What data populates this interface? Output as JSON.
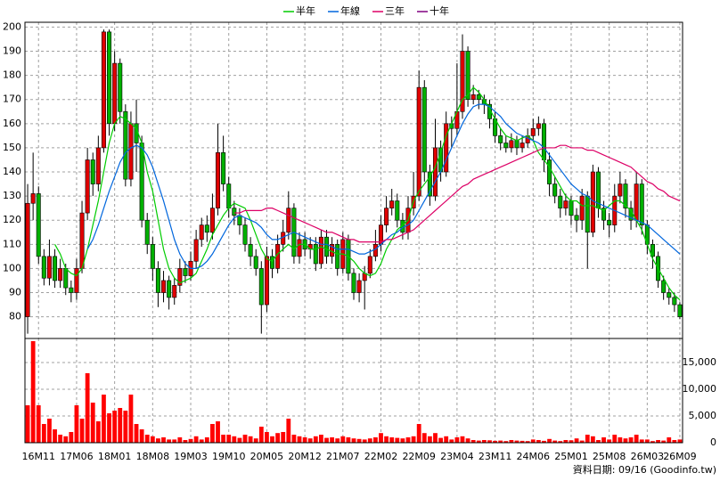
{
  "chart_data": {
    "type": "candlestick",
    "legend": "top",
    "grid": true,
    "source": "資料日期: 09/16 (Goodinfo.tw)",
    "up_color": "#e00000",
    "down_color": "#00b000",
    "categories": [
      null,
      null,
      "16M11",
      null,
      null,
      null,
      null,
      null,
      null,
      "17M06",
      null,
      null,
      null,
      null,
      null,
      null,
      "18M01",
      null,
      null,
      null,
      null,
      null,
      null,
      "18M08",
      null,
      null,
      null,
      null,
      null,
      null,
      "19M03",
      null,
      null,
      null,
      null,
      null,
      null,
      "19M10",
      null,
      null,
      null,
      null,
      null,
      null,
      "20M05",
      null,
      null,
      null,
      null,
      null,
      null,
      "20M12",
      null,
      null,
      null,
      null,
      null,
      null,
      "21M07",
      null,
      null,
      null,
      null,
      null,
      null,
      "22M02",
      null,
      null,
      null,
      null,
      null,
      null,
      "22M09",
      null,
      null,
      null,
      null,
      null,
      null,
      "23M04",
      null,
      null,
      null,
      null,
      null,
      null,
      "23M11",
      null,
      null,
      null,
      null,
      null,
      null,
      "24M06",
      null,
      null,
      null,
      null,
      null,
      null,
      "25M01",
      null,
      null,
      null,
      null,
      null,
      null,
      "25M08",
      null,
      null,
      null,
      null,
      null,
      null,
      "26M03",
      null,
      null,
      null,
      null,
      null,
      "26M09"
    ],
    "open": [
      80,
      127,
      131,
      105,
      96,
      105,
      95,
      100,
      92,
      90,
      100,
      123,
      145,
      135,
      150,
      198,
      160,
      185,
      165,
      137,
      160,
      152,
      120,
      110,
      100,
      90,
      95,
      88,
      93,
      100,
      97,
      103,
      112,
      118,
      115,
      125,
      148,
      135,
      125,
      122,
      118,
      110,
      105,
      100,
      85,
      105,
      100,
      110,
      115,
      125,
      105,
      112,
      108,
      110,
      102,
      113,
      105,
      110,
      100,
      112,
      98,
      90,
      95,
      98,
      105,
      110,
      118,
      125,
      128,
      120,
      115,
      125,
      130,
      175,
      140,
      130,
      150,
      140,
      160,
      158,
      165,
      190,
      170,
      172,
      170,
      168,
      162,
      155,
      152,
      150,
      153,
      150,
      152,
      155,
      158,
      160,
      145,
      135,
      130,
      125,
      128,
      122,
      120,
      130,
      115,
      140,
      125,
      120,
      118,
      130,
      135,
      125,
      120,
      135,
      118,
      110,
      105,
      95,
      90,
      88,
      85
    ],
    "high": [
      135,
      148,
      134,
      108,
      112,
      108,
      104,
      102,
      95,
      104,
      128,
      150,
      148,
      155,
      199,
      199,
      190,
      187,
      168,
      165,
      170,
      155,
      123,
      113,
      103,
      99,
      97,
      96,
      104,
      103,
      107,
      116,
      121,
      122,
      131,
      160,
      155,
      138,
      128,
      125,
      121,
      113,
      108,
      103,
      109,
      108,
      114,
      120,
      132,
      127,
      115,
      115,
      113,
      113,
      116,
      116,
      113,
      112,
      115,
      114,
      100,
      98,
      101,
      108,
      116,
      122,
      130,
      133,
      131,
      123,
      130,
      140,
      182,
      178,
      143,
      162,
      153,
      165,
      163,
      185,
      197,
      192,
      176,
      174,
      172,
      170,
      165,
      158,
      155,
      156,
      155,
      155,
      158,
      162,
      163,
      162,
      148,
      138,
      133,
      131,
      130,
      125,
      133,
      132,
      143,
      142,
      128,
      123,
      135,
      140,
      137,
      128,
      140,
      137,
      120,
      112,
      107,
      97,
      92,
      90,
      86
    ],
    "low": [
      73,
      120,
      102,
      93,
      93,
      92,
      92,
      89,
      86,
      87,
      98,
      120,
      130,
      132,
      148,
      155,
      157,
      160,
      134,
      134,
      140,
      117,
      106,
      95,
      84,
      86,
      83,
      85,
      90,
      94,
      95,
      100,
      109,
      111,
      112,
      122,
      132,
      121,
      118,
      114,
      107,
      101,
      97,
      73,
      82,
      96,
      98,
      107,
      112,
      102,
      102,
      105,
      104,
      99,
      100,
      102,
      102,
      97,
      98,
      95,
      87,
      86,
      83,
      96,
      103,
      107,
      115,
      122,
      117,
      112,
      112,
      122,
      128,
      136,
      126,
      128,
      136,
      138,
      150,
      155,
      162,
      167,
      168,
      166,
      164,
      158,
      152,
      149,
      148,
      148,
      147,
      148,
      150,
      153,
      155,
      140,
      130,
      127,
      121,
      122,
      118,
      115,
      116,
      100,
      113,
      121,
      116,
      113,
      115,
      127,
      121,
      116,
      117,
      114,
      106,
      100,
      92,
      87,
      85,
      82,
      79
    ],
    "close": [
      127,
      131,
      105,
      96,
      105,
      95,
      100,
      92,
      90,
      100,
      123,
      145,
      135,
      150,
      198,
      160,
      185,
      165,
      137,
      160,
      152,
      120,
      110,
      100,
      90,
      95,
      88,
      93,
      100,
      97,
      103,
      112,
      118,
      115,
      125,
      148,
      135,
      125,
      122,
      118,
      110,
      105,
      100,
      85,
      105,
      100,
      110,
      115,
      125,
      105,
      112,
      108,
      110,
      102,
      113,
      105,
      110,
      100,
      112,
      98,
      90,
      95,
      98,
      105,
      110,
      118,
      125,
      128,
      120,
      115,
      125,
      130,
      175,
      140,
      130,
      150,
      140,
      160,
      158,
      165,
      190,
      170,
      172,
      170,
      168,
      162,
      155,
      152,
      150,
      153,
      150,
      152,
      155,
      158,
      160,
      145,
      135,
      130,
      125,
      128,
      122,
      120,
      130,
      115,
      140,
      125,
      120,
      118,
      130,
      135,
      125,
      120,
      135,
      118,
      110,
      105,
      95,
      90,
      88,
      85,
      80
    ],
    "series": [
      {
        "name": "半年",
        "color": "#00cc00",
        "values": [
          null,
          null,
          null,
          null,
          null,
          110,
          106,
          100,
          98,
          97,
          100,
          108,
          118,
          128,
          140,
          152,
          160,
          163,
          162,
          160,
          158,
          152,
          140,
          132,
          120,
          108,
          100,
          96,
          94,
          95,
          96,
          98,
          103,
          108,
          114,
          118,
          122,
          125,
          127,
          126,
          125,
          120,
          114,
          108,
          104,
          103,
          106,
          108,
          110,
          108,
          110,
          110,
          108,
          108,
          109,
          108,
          107,
          106,
          106,
          105,
          103,
          100,
          98,
          97,
          98,
          102,
          108,
          112,
          116,
          118,
          120,
          128,
          132,
          135,
          138,
          142,
          148,
          155,
          160,
          165,
          170,
          172,
          175,
          173,
          170,
          166,
          162,
          158,
          155,
          154,
          153,
          154,
          155,
          153,
          148,
          145,
          142,
          138,
          134,
          130,
          128,
          128,
          126,
          126,
          126,
          125,
          124,
          126,
          128,
          128,
          126,
          124,
          120,
          116,
          110,
          104,
          100,
          96,
          92,
          89,
          87
        ]
      },
      {
        "name": "年線",
        "color": "#0066dd",
        "values": [
          null,
          null,
          null,
          null,
          null,
          null,
          null,
          null,
          null,
          null,
          null,
          108,
          112,
          118,
          125,
          132,
          138,
          144,
          148,
          150,
          151,
          150,
          147,
          142,
          135,
          128,
          120,
          112,
          106,
          102,
          100,
          100,
          101,
          103,
          106,
          110,
          114,
          118,
          121,
          122,
          121,
          120,
          119,
          117,
          114,
          112,
          112,
          113,
          114,
          115,
          114,
          113,
          112,
          111,
          110,
          110,
          109,
          108,
          108,
          108,
          107,
          106,
          106,
          107,
          108,
          110,
          112,
          114,
          115,
          117,
          118,
          120,
          124,
          128,
          132,
          136,
          140,
          145,
          150,
          155,
          160,
          164,
          167,
          168,
          168,
          167,
          165,
          163,
          160,
          158,
          156,
          155,
          154,
          153,
          152,
          150,
          147,
          144,
          141,
          138,
          135,
          133,
          131,
          130,
          128,
          127,
          126,
          125,
          124,
          123,
          122,
          121,
          120,
          119,
          118,
          116,
          114,
          112,
          110,
          108,
          106
        ]
      },
      {
        "name": "三年",
        "color": "#dd0066",
        "values": [
          null,
          null,
          null,
          null,
          null,
          null,
          null,
          null,
          null,
          null,
          null,
          null,
          null,
          null,
          null,
          null,
          null,
          null,
          null,
          null,
          null,
          null,
          null,
          null,
          null,
          null,
          null,
          null,
          null,
          null,
          null,
          null,
          null,
          null,
          null,
          null,
          null,
          null,
          123,
          123,
          124,
          124,
          124,
          124,
          125,
          125,
          124,
          123,
          122,
          121,
          120,
          119,
          118,
          117,
          116,
          115,
          115,
          114,
          113,
          112,
          112,
          111,
          111,
          111,
          111,
          111,
          112,
          112,
          113,
          114,
          115,
          116,
          118,
          120,
          122,
          124,
          126,
          128,
          130,
          132,
          134,
          135,
          137,
          138,
          139,
          140,
          141,
          142,
          143,
          144,
          145,
          146,
          147,
          148,
          149,
          150,
          150,
          150,
          151,
          151,
          150,
          150,
          150,
          149,
          149,
          148,
          147,
          146,
          145,
          144,
          143,
          142,
          140,
          138,
          136,
          135,
          133,
          132,
          130,
          129,
          128
        ]
      },
      {
        "name": "十年",
        "color": "#800080",
        "values": [
          null,
          null,
          null,
          null,
          null,
          null,
          null,
          null,
          null,
          null,
          null,
          null,
          null,
          null,
          null,
          null,
          null,
          null,
          null,
          null,
          null,
          null,
          null,
          null,
          null,
          null,
          null,
          null,
          null,
          null,
          null,
          null,
          null,
          null,
          null,
          null,
          null,
          null,
          null,
          null,
          null,
          null,
          null,
          null,
          null,
          null,
          null,
          null,
          null,
          null,
          null,
          null,
          null,
          null,
          null,
          null,
          null,
          null,
          null,
          null,
          null,
          null,
          null,
          null,
          null,
          null,
          null,
          null,
          null,
          null,
          null,
          null,
          null,
          null,
          null,
          null,
          null,
          null,
          null,
          null,
          null,
          null,
          null,
          null,
          null,
          null,
          null,
          null,
          null,
          null,
          null,
          null,
          null,
          null,
          null,
          null,
          null,
          null,
          null,
          null,
          null,
          null,
          null,
          null,
          null,
          null,
          null,
          null,
          null,
          null,
          null,
          null,
          null,
          null,
          null,
          null,
          null,
          null,
          null,
          null,
          null
        ]
      }
    ],
    "ylim": [
      71,
      202
    ],
    "yticks": [
      80,
      90,
      100,
      110,
      120,
      130,
      140,
      150,
      160,
      170,
      180,
      190,
      200
    ],
    "volume": {
      "color": "#ff0000",
      "ylim": [
        0,
        19500
      ],
      "yticks": [
        0,
        {
          "value": 5000,
          "label": "5,000"
        },
        {
          "value": 10000,
          "label": "10,000"
        },
        {
          "value": 15000,
          "label": "15,000"
        }
      ],
      "values": [
        7000,
        19000,
        7000,
        3500,
        4500,
        2500,
        1500,
        1200,
        2000,
        7000,
        4500,
        13000,
        7500,
        4000,
        9000,
        5500,
        6000,
        6500,
        6000,
        9000,
        3500,
        2500,
        1500,
        1200,
        800,
        1000,
        600,
        600,
        1000,
        500,
        700,
        1200,
        600,
        1000,
        3500,
        4000,
        1500,
        1500,
        1200,
        900,
        1500,
        1200,
        800,
        3000,
        2000,
        1200,
        1800,
        2000,
        4500,
        1500,
        1200,
        1000,
        800,
        1200,
        1500,
        900,
        1000,
        800,
        1200,
        1000,
        800,
        700,
        600,
        800,
        1000,
        1800,
        1200,
        1000,
        900,
        800,
        1000,
        1200,
        3500,
        1800,
        1200,
        1800,
        900,
        1200,
        600,
        1000,
        1200,
        800,
        500,
        400,
        500,
        450,
        350,
        400,
        300,
        500,
        400,
        350,
        300,
        600,
        500,
        350,
        700,
        400,
        300,
        500,
        450,
        800,
        400,
        1500,
        1200,
        500,
        1000,
        600,
        1500,
        1000,
        800,
        1000,
        1500,
        600,
        600,
        300,
        500,
        400,
        1000,
        500,
        600
      ]
    }
  }
}
